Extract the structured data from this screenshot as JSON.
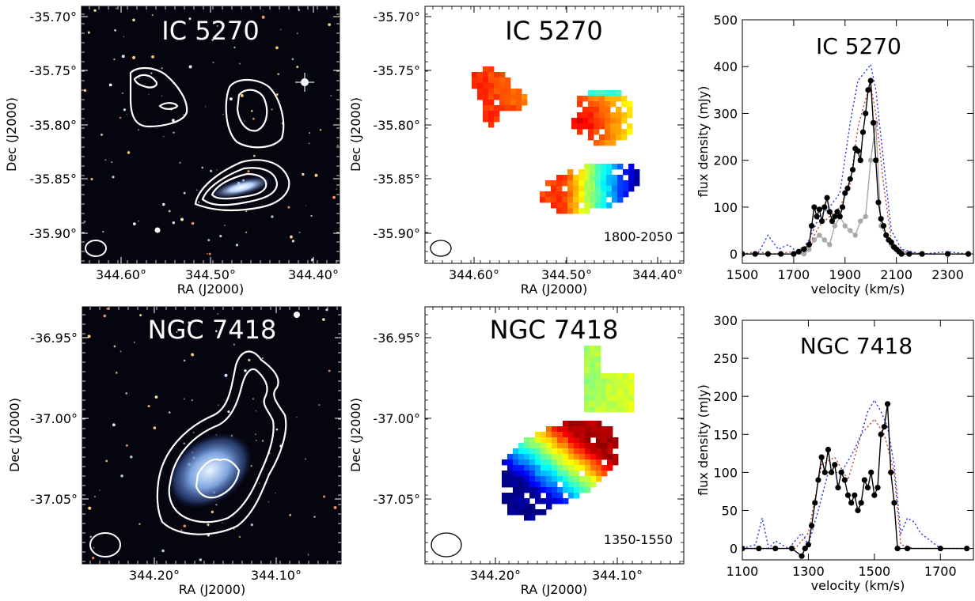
{
  "chart_data": [
    {
      "type": "image",
      "title": "IC 5270",
      "panel": "optical-with-HI-contours",
      "xlabel": "RA (J2000)",
      "ylabel": "Dec (J2000)",
      "xticks": [
        "344.60°",
        "344.50°",
        "344.40°"
      ],
      "yticks": [
        "-35.70°",
        "-35.75°",
        "-35.80°",
        "-35.85°",
        "-35.90°"
      ]
    },
    {
      "type": "heatmap",
      "title": "IC 5270",
      "panel": "velocity-field",
      "xlabel": "RA (J2000)",
      "ylabel": "Dec (J2000)",
      "xticks": [
        "344.60°",
        "344.50°",
        "344.40°"
      ],
      "yticks": [
        "-35.70°",
        "-35.75°",
        "-35.80°",
        "-35.85°",
        "-35.90°"
      ],
      "annotation": "1800-2050",
      "colormap": "jet"
    },
    {
      "type": "line",
      "title": "IC 5270",
      "xlabel": "velocity (km/s)",
      "ylabel": "flux density (mJy)",
      "xlim": [
        1500,
        2400
      ],
      "ylim": [
        -20,
        500
      ],
      "xticks": [
        "1500",
        "1700",
        "1900",
        "2100",
        "2300"
      ],
      "yticks": [
        "0",
        "100",
        "200",
        "300",
        "400",
        "500"
      ],
      "series": [
        {
          "style": "black-dots",
          "x": [
            1500,
            1550,
            1600,
            1650,
            1700,
            1720,
            1740,
            1760,
            1770,
            1780,
            1790,
            1800,
            1810,
            1820,
            1830,
            1840,
            1850,
            1860,
            1870,
            1880,
            1890,
            1900,
            1910,
            1920,
            1930,
            1940,
            1950,
            1960,
            1970,
            1980,
            1990,
            2000,
            2010,
            2020,
            2030,
            2040,
            2050,
            2060,
            2070,
            2080,
            2090,
            2100,
            2110,
            2120,
            2150,
            2200,
            2300,
            2380
          ],
          "y": [
            0,
            0,
            0,
            0,
            0,
            5,
            10,
            20,
            60,
            100,
            80,
            95,
            70,
            100,
            120,
            90,
            70,
            80,
            90,
            80,
            100,
            130,
            140,
            160,
            180,
            225,
            220,
            200,
            260,
            300,
            350,
            370,
            280,
            200,
            110,
            75,
            60,
            40,
            30,
            25,
            15,
            10,
            5,
            0,
            0,
            0,
            0,
            0
          ]
        },
        {
          "style": "grey-dots",
          "x": [
            1700,
            1740,
            1760,
            1780,
            1800,
            1820,
            1840,
            1860,
            1880,
            1900,
            1920,
            1940,
            1960,
            1980,
            2000,
            2020,
            2040,
            2080,
            2120,
            2200
          ],
          "y": [
            0,
            0,
            10,
            30,
            40,
            30,
            20,
            60,
            80,
            60,
            50,
            40,
            70,
            80,
            200,
            280,
            60,
            20,
            5,
            0
          ]
        },
        {
          "style": "red-dotted",
          "x": [
            1500,
            1560,
            1620,
            1700,
            1760,
            1800,
            1840,
            1880,
            1920,
            1950,
            1980,
            2000,
            2020,
            2050,
            2080,
            2120,
            2200,
            2380
          ],
          "y": [
            0,
            5,
            0,
            5,
            20,
            60,
            80,
            100,
            150,
            270,
            330,
            360,
            300,
            150,
            30,
            5,
            0,
            0
          ]
        },
        {
          "style": "blue-dotted",
          "x": [
            1500,
            1560,
            1600,
            1640,
            1680,
            1720,
            1760,
            1800,
            1840,
            1880,
            1920,
            1950,
            1980,
            2000,
            2020,
            2050,
            2080,
            2120,
            2200,
            2300,
            2380
          ],
          "y": [
            0,
            0,
            40,
            10,
            20,
            0,
            30,
            80,
            100,
            130,
            280,
            370,
            390,
            405,
            350,
            200,
            50,
            10,
            0,
            5,
            0
          ]
        }
      ]
    },
    {
      "type": "image",
      "title": "NGC 7418",
      "panel": "optical-with-HI-contours",
      "xlabel": "RA (J2000)",
      "ylabel": "Dec (J2000)",
      "xticks": [
        "344.20°",
        "344.10°"
      ],
      "yticks": [
        "-36.95°",
        "-37.00°",
        "-37.05°"
      ]
    },
    {
      "type": "heatmap",
      "title": "NGC 7418",
      "panel": "velocity-field",
      "xlabel": "RA (J2000)",
      "ylabel": "Dec (J2000)",
      "xticks": [
        "344.20°",
        "344.10°"
      ],
      "yticks": [
        "-36.95°",
        "-37.00°",
        "-37.05°"
      ],
      "annotation": "1350-1550",
      "colormap": "jet"
    },
    {
      "type": "line",
      "title": "NGC 7418",
      "xlabel": "velocity (km/s)",
      "ylabel": "flux density (mJy)",
      "xlim": [
        1100,
        1800
      ],
      "ylim": [
        -15,
        300
      ],
      "xticks": [
        "1100",
        "1300",
        "1500",
        "1700"
      ],
      "yticks": [
        "0",
        "50",
        "100",
        "150",
        "200",
        "250",
        "300"
      ],
      "series": [
        {
          "style": "black-dots",
          "x": [
            1100,
            1150,
            1200,
            1250,
            1280,
            1290,
            1300,
            1310,
            1320,
            1330,
            1340,
            1350,
            1360,
            1370,
            1380,
            1390,
            1400,
            1410,
            1420,
            1430,
            1440,
            1450,
            1460,
            1470,
            1480,
            1490,
            1500,
            1510,
            1520,
            1530,
            1540,
            1550,
            1560,
            1570,
            1600,
            1700,
            1780
          ],
          "y": [
            0,
            0,
            0,
            0,
            -10,
            0,
            5,
            30,
            60,
            90,
            120,
            100,
            130,
            100,
            110,
            80,
            100,
            90,
            70,
            60,
            70,
            50,
            60,
            90,
            80,
            100,
            70,
            80,
            150,
            160,
            190,
            100,
            60,
            0,
            0,
            0,
            0
          ]
        },
        {
          "style": "red-dotted",
          "x": [
            1100,
            1160,
            1200,
            1260,
            1300,
            1340,
            1380,
            1420,
            1460,
            1500,
            1530,
            1560,
            1580,
            1620,
            1700,
            1780
          ],
          "y": [
            0,
            0,
            0,
            0,
            20,
            110,
            120,
            90,
            150,
            170,
            150,
            100,
            5,
            0,
            0,
            0
          ]
        },
        {
          "style": "blue-dotted",
          "x": [
            1100,
            1140,
            1160,
            1180,
            1200,
            1240,
            1280,
            1300,
            1330,
            1360,
            1400,
            1440,
            1460,
            1480,
            1500,
            1520,
            1540,
            1560,
            1580,
            1600,
            1620,
            1640,
            1700,
            1780
          ],
          "y": [
            0,
            5,
            40,
            0,
            10,
            0,
            20,
            5,
            50,
            100,
            100,
            130,
            150,
            180,
            195,
            180,
            160,
            110,
            20,
            40,
            35,
            20,
            0,
            0
          ]
        }
      ]
    }
  ]
}
